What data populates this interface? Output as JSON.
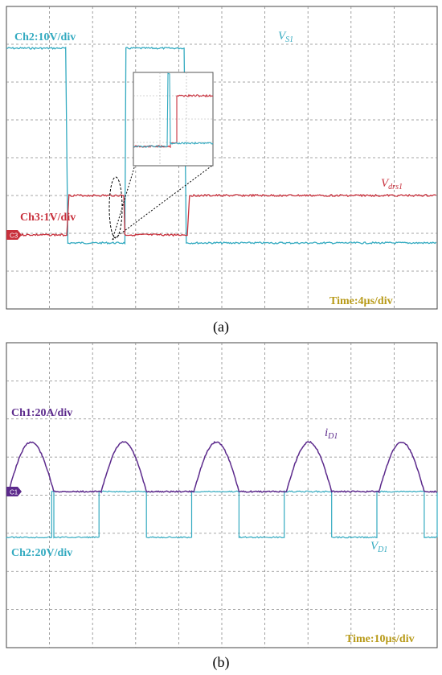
{
  "chart_data": [
    {
      "type": "line",
      "panel_label": "(a)",
      "title": "",
      "time_div_label": "Time:4µs/div",
      "labels": {
        "ch2_scale": "Ch2:10V/div",
        "ch3_scale": "Ch3:1V/div",
        "vs1_main": "V",
        "vs1_sub": "S1",
        "vdrs1_main": "V",
        "vdrs1_sub": "drs1",
        "marker_c3": "C3"
      },
      "grid": {
        "x_divisions": 10,
        "y_divisions": 8
      },
      "x": [
        0,
        5.6,
        5.6,
        11.0,
        11.0,
        16.6,
        16.6,
        21.0,
        21.0,
        22.0,
        22.0,
        40
      ],
      "series": [
        {
          "name": "VS1",
          "channel": "Ch2",
          "color": "#33aac0",
          "time_us": [
            0,
            5.5,
            5.7,
            11.0,
            11.1,
            16.5,
            16.7,
            40
          ],
          "level_div": [
            3.5,
            3.5,
            -0.15,
            -0.15,
            3.5,
            3.5,
            -0.15,
            -0.15
          ]
        },
        {
          "name": "Vdrs1",
          "channel": "Ch3",
          "color": "#c8303c",
          "time_us": [
            0,
            5.6,
            5.8,
            10.9,
            11.0,
            16.8,
            17.0,
            40
          ],
          "level_div": [
            0,
            0,
            1.0,
            1.0,
            0,
            0,
            1.0,
            1.0
          ]
        }
      ]
    },
    {
      "type": "line",
      "panel_label": "(b)",
      "title": "",
      "time_div_label": "Time:10µs/div",
      "labels": {
        "ch1_scale": "Ch1:20A/div",
        "ch2_scale": "Ch2:20V/div",
        "id1_main": "i",
        "id1_sub": "D1",
        "vd1_main": "V",
        "vd1_sub": "D1",
        "marker_c1": "C1"
      },
      "grid": {
        "x_divisions": 10,
        "y_divisions": 8
      },
      "period_us": 21.5,
      "series": [
        {
          "name": "iD1",
          "channel": "Ch1",
          "color": "#5c2a8c",
          "pulse_start_us": [
            0.5,
            22.0,
            43.5,
            65.0,
            86.5
          ],
          "pulse_width_us": 10.5,
          "peak_div": 1.3
        },
        {
          "name": "VD1",
          "channel": "Ch2",
          "color": "#33aac0",
          "low_start_us": [
            0,
            11.0,
            32.5,
            54.0,
            75.5,
            97.0
          ],
          "low_width_us": 10.5,
          "high_div": 0,
          "low_div": -1.2
        }
      ]
    }
  ]
}
